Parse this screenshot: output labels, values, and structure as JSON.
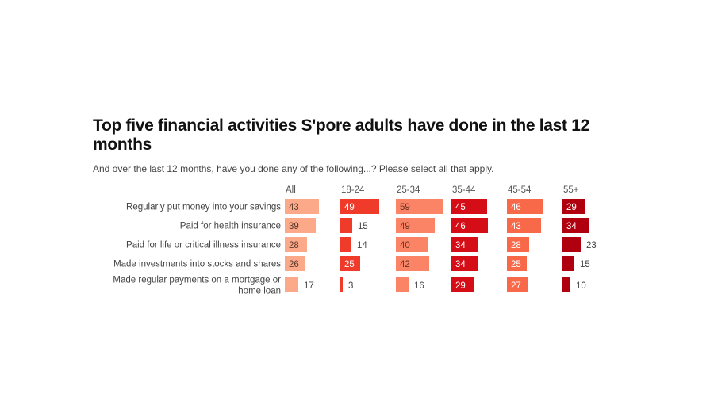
{
  "chart_data": {
    "type": "bar",
    "orientation": "horizontal",
    "layout": "small-multiples",
    "title": "Top five financial activities S'pore adults have done in the last 12 months",
    "subtitle": "And over the last 12 months, have you done any of the following...? Please select all that apply.",
    "unit": "%",
    "categories": [
      [
        "Regularly put money into your savings"
      ],
      [
        "Paid for health insurance"
      ],
      [
        "Paid for life or critical illness insurance"
      ],
      [
        "Made investments into stocks and shares"
      ],
      [
        "Made regular payments on a mortgage or",
        "home loan"
      ]
    ],
    "series": [
      {
        "name": "All",
        "color": "#fca98a",
        "label_color": "#5a3a2e",
        "values": [
          43,
          39,
          28,
          26,
          17
        ]
      },
      {
        "name": "18-24",
        "color": "#f03b2a",
        "label_color": "#ffffff",
        "values": [
          49,
          15,
          14,
          25,
          3
        ]
      },
      {
        "name": "25-34",
        "color": "#fb8466",
        "label_color": "#6a3322",
        "values": [
          59,
          49,
          40,
          42,
          16
        ]
      },
      {
        "name": "35-44",
        "color": "#d50d17",
        "label_color": "#ffffff",
        "values": [
          45,
          46,
          34,
          34,
          29
        ]
      },
      {
        "name": "45-54",
        "color": "#f8694a",
        "label_color": "#ffffff",
        "values": [
          46,
          43,
          28,
          25,
          27
        ]
      },
      {
        "name": "55+",
        "color": "#b00010",
        "label_color": "#ffffff",
        "values": [
          29,
          34,
          23,
          15,
          10
        ]
      }
    ],
    "inside_label_threshold": 25,
    "legend": "none",
    "grid": false
  }
}
